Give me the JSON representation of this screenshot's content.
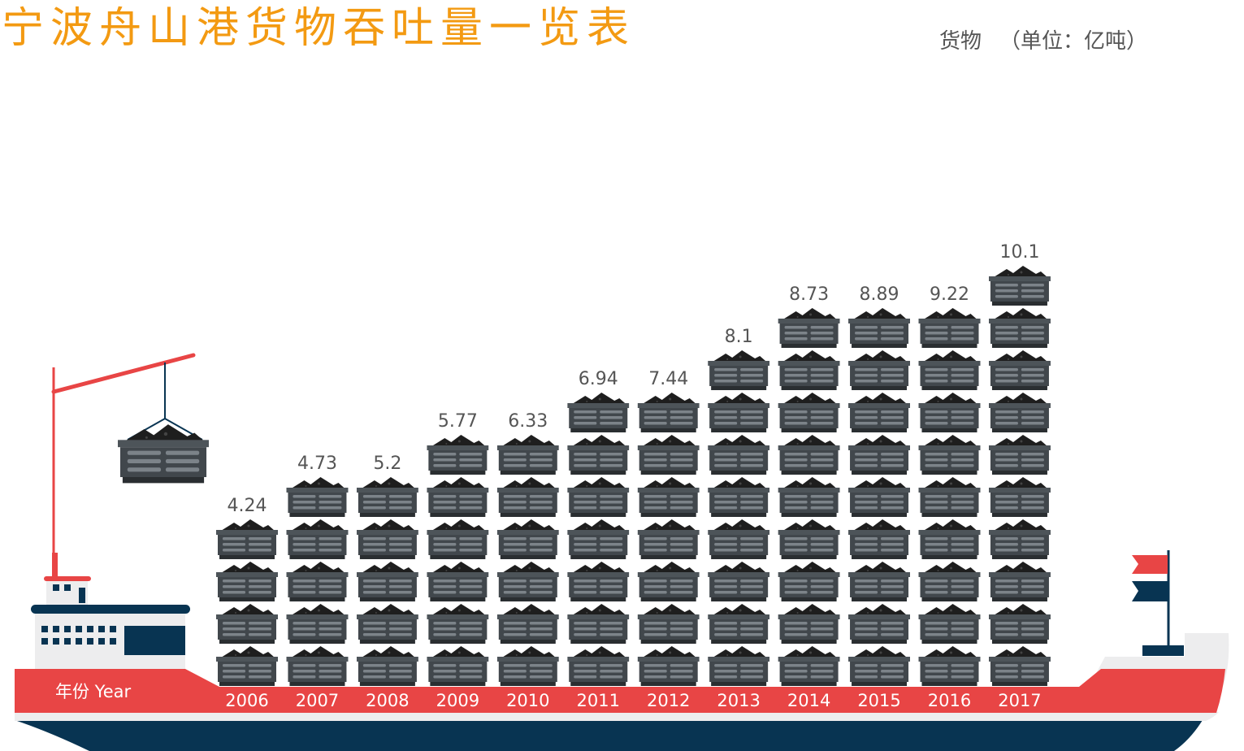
{
  "header": {
    "title": "宁波舟山港货物吞吐量一览表",
    "metric": "货物",
    "unit": "（单位：亿吨）"
  },
  "colors": {
    "title": "#f39a12",
    "hull_red": "#e84545",
    "hull_navy": "#083452",
    "container_body": "#41474c",
    "coal": "#1e1e1e"
  },
  "chart_data": {
    "type": "bar",
    "title": "宁波舟山港货物吞吐量一览表",
    "xlabel": "年份 Year",
    "ylabel": "货物（单位：亿吨）",
    "categories": [
      "2006",
      "2007",
      "2008",
      "2009",
      "2010",
      "2011",
      "2012",
      "2013",
      "2014",
      "2015",
      "2016",
      "2017"
    ],
    "values": [
      4.24,
      4.73,
      5.2,
      5.77,
      6.33,
      6.94,
      7.44,
      8.1,
      8.73,
      8.89,
      9.22,
      10.1
    ],
    "value_labels": [
      "4.24",
      "4.73",
      "5.2",
      "5.77",
      "6.33",
      "6.94",
      "7.44",
      "8.1",
      "8.73",
      "8.89",
      "9.22",
      "10.1"
    ],
    "unit_per_icon": 1
  }
}
